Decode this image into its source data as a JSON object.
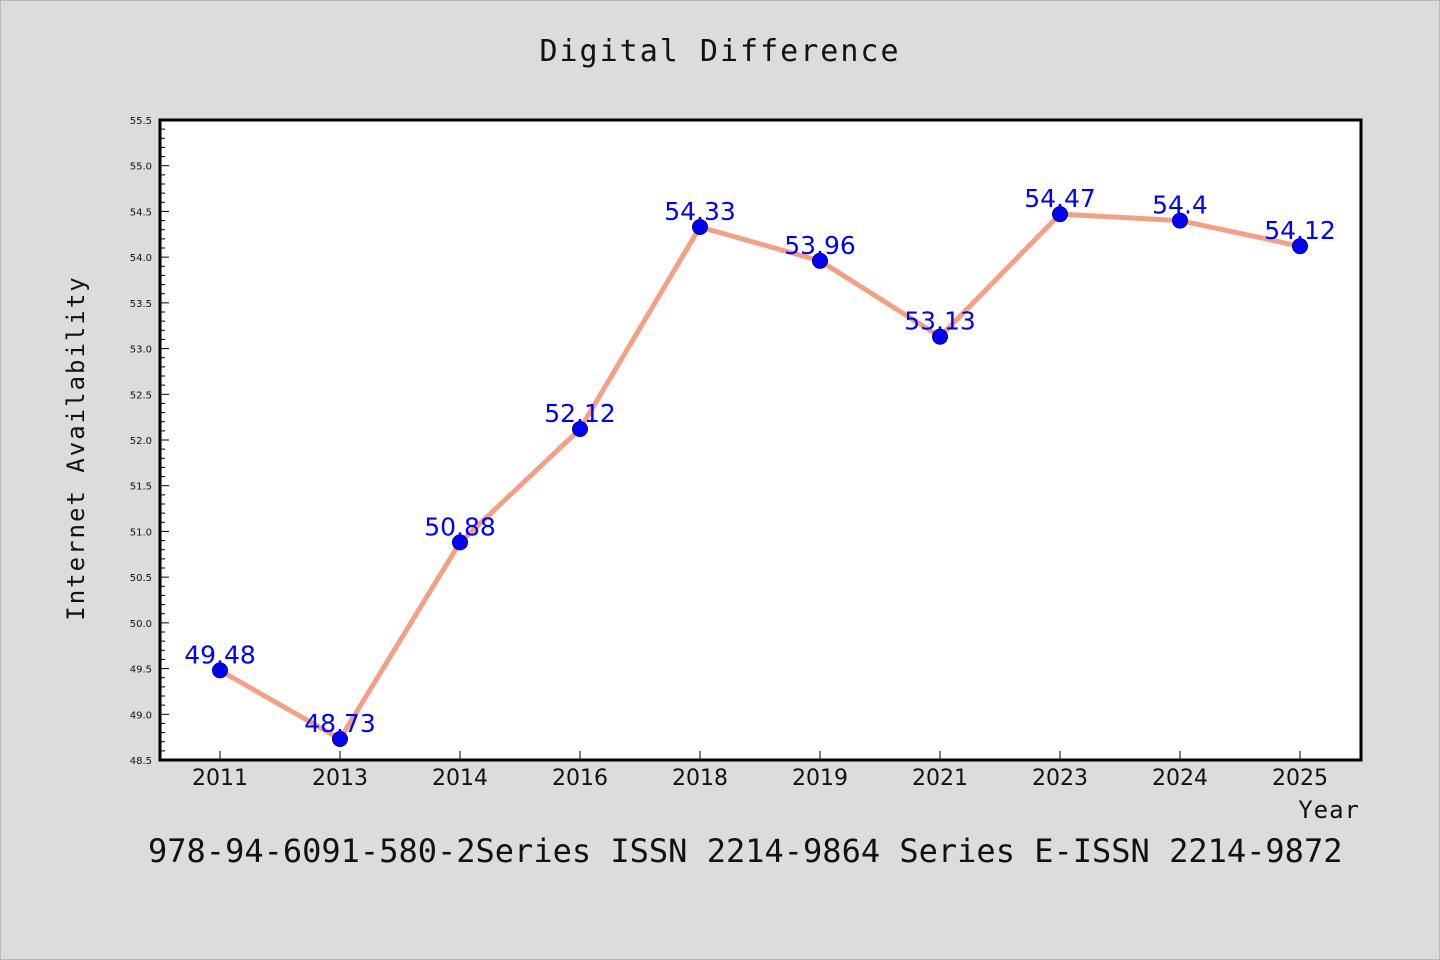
{
  "chart_data": {
    "type": "line",
    "title": "Digital Difference",
    "xlabel": "Year",
    "ylabel": "Internet Availability",
    "categories": [
      "2011",
      "2013",
      "2014",
      "2016",
      "2018",
      "2019",
      "2021",
      "2023",
      "2024",
      "2025"
    ],
    "values": [
      49.48,
      48.73,
      50.88,
      52.12,
      54.33,
      53.96,
      53.13,
      54.47,
      54.4,
      54.12
    ],
    "data_labels": [
      "49.48",
      "48.73",
      "50.88",
      "52.12",
      "54.33",
      "53.96",
      "53.13",
      "54.47",
      "54.4",
      "54.12"
    ],
    "ylim": [
      48.5,
      55.5
    ],
    "yticks": [
      "48.5",
      "49.0",
      "49.5",
      "50.0",
      "50.5",
      "51.0",
      "51.5",
      "52.0",
      "52.5",
      "53.0",
      "53.5",
      "54.0",
      "54.5",
      "55.0",
      "55.5"
    ],
    "grid": false,
    "line_color": "#f4a084",
    "marker_color": "#0000ff",
    "label_color": "#0000ff"
  },
  "footer_note": "978-94-6091-580-2Series ISSN 2214-9864 Series E-ISSN 2214-9872"
}
